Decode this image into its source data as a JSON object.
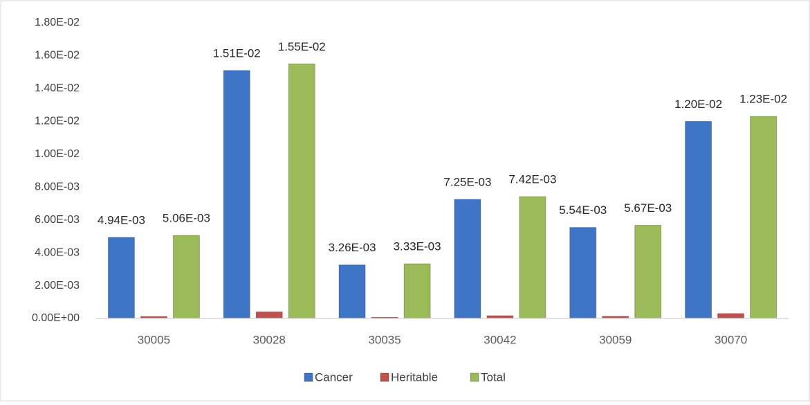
{
  "chart_data": {
    "type": "bar",
    "categories": [
      "30005",
      "30028",
      "30035",
      "30042",
      "30059",
      "30070"
    ],
    "series": [
      {
        "name": "Cancer",
        "color": "#3f75c6",
        "values": [
          0.00494,
          0.0151,
          0.00326,
          0.00725,
          0.00554,
          0.012
        ],
        "value_labels": [
          "4.94E-03",
          "1.51E-02",
          "3.26E-03",
          "7.25E-03",
          "5.54E-03",
          "1.20E-02"
        ]
      },
      {
        "name": "Heritable",
        "color": "#c0504d",
        "values": [
          0.00012,
          0.0004,
          7e-05,
          0.00017,
          0.00013,
          0.0003
        ]
      },
      {
        "name": "Total",
        "color": "#9bbb59",
        "values": [
          0.00506,
          0.0155,
          0.00333,
          0.00742,
          0.00567,
          0.0123
        ],
        "value_labels": [
          "5.06E-03",
          "1.55E-02",
          "3.33E-03",
          "7.42E-03",
          "5.67E-03",
          "1.23E-02"
        ]
      }
    ],
    "ylim": [
      0,
      0.018
    ],
    "yticks": [
      {
        "value": 0,
        "label": "0.00E+00"
      },
      {
        "value": 0.002,
        "label": "2.00E-03"
      },
      {
        "value": 0.004,
        "label": "4.00E-03"
      },
      {
        "value": 0.006,
        "label": "6.00E-03"
      },
      {
        "value": 0.008,
        "label": "8.00E-03"
      },
      {
        "value": 0.01,
        "label": "1.00E-02"
      },
      {
        "value": 0.012,
        "label": "1.20E-02"
      },
      {
        "value": 0.014,
        "label": "1.40E-02"
      },
      {
        "value": 0.016,
        "label": "1.60E-02"
      },
      {
        "value": 0.018,
        "label": "1.80E-02"
      }
    ],
    "grid": false,
    "legend": "bottom"
  }
}
